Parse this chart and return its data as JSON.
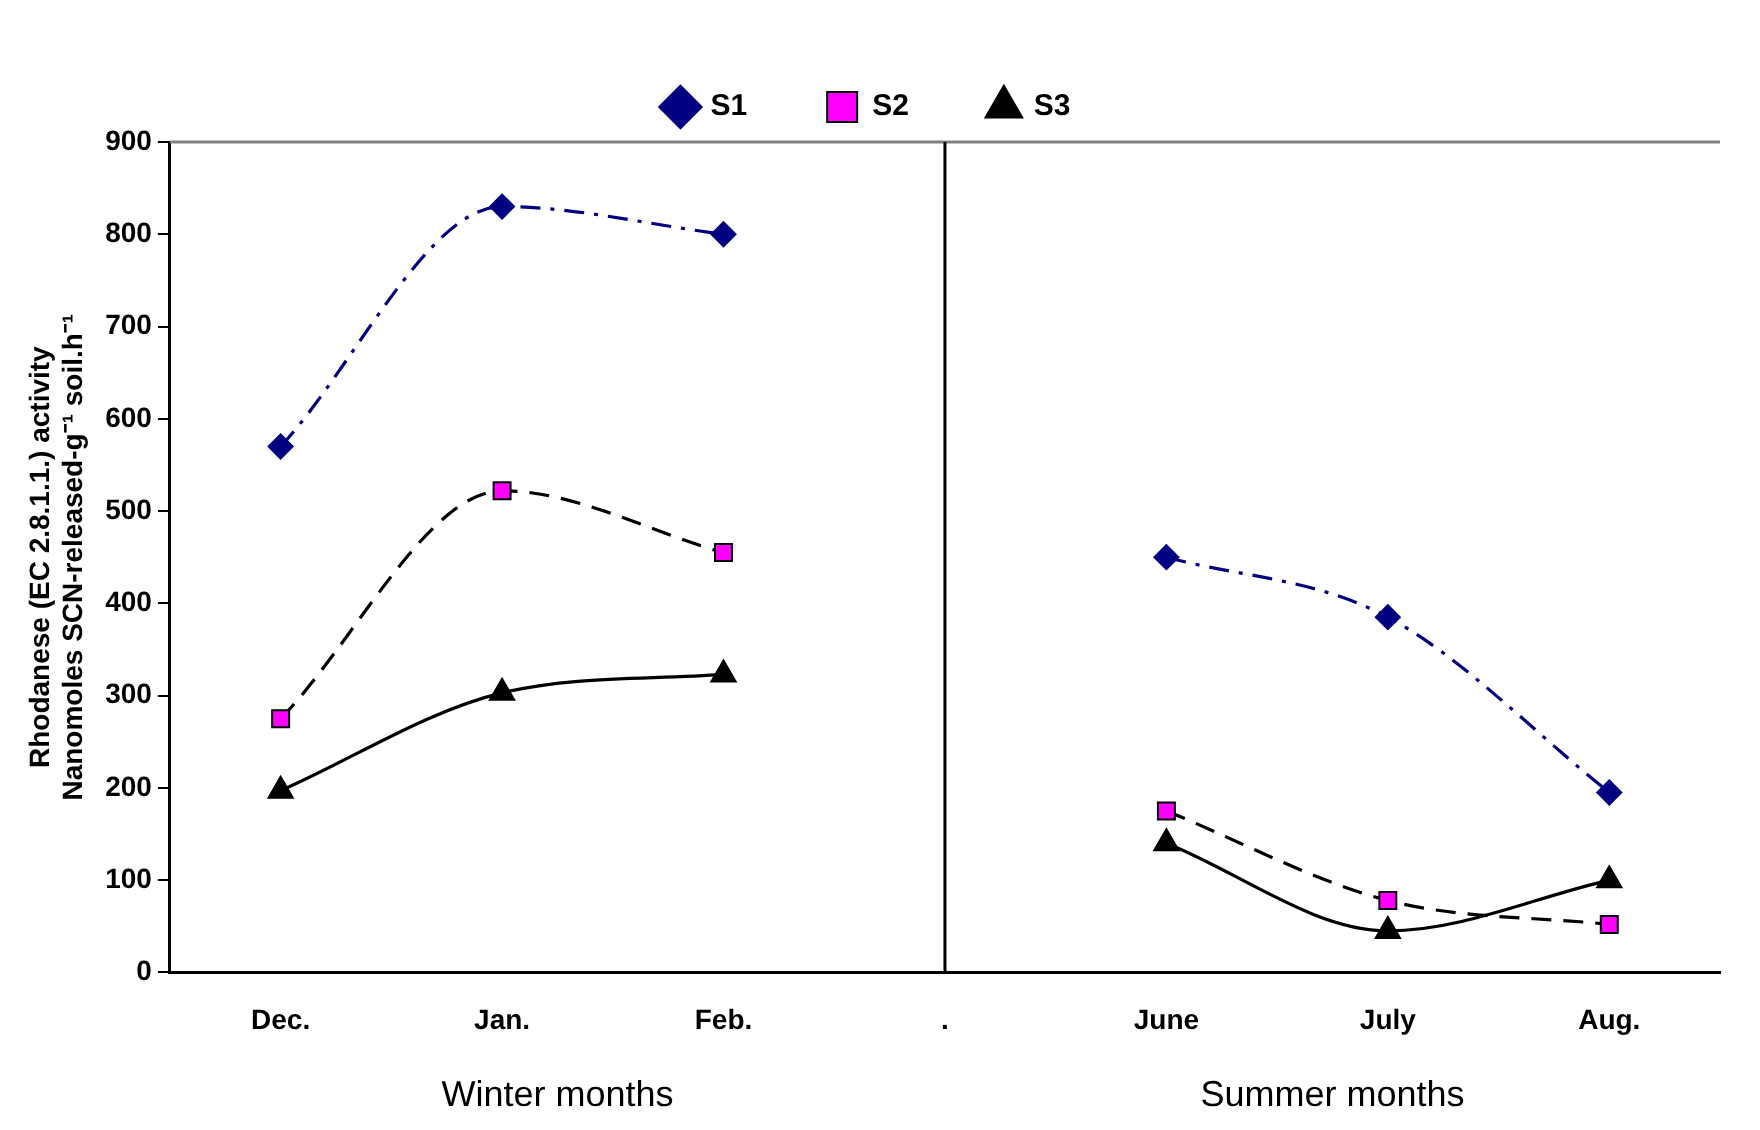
{
  "chart_data": {
    "type": "line",
    "ylabel": "Rhodanese (EC 2.8.1.1.) activity\nNanomoles SCN-released-g⁻¹ soil.h⁻¹",
    "categories": [
      "Dec.",
      "Jan.",
      "Feb.",
      ".",
      "June",
      "July",
      "Aug."
    ],
    "series": [
      {
        "name": "S1",
        "color": "#000080",
        "marker": "diamond",
        "line_style": "dashdot",
        "values": [
          570,
          830,
          800,
          null,
          450,
          385,
          195
        ]
      },
      {
        "name": "S2",
        "color": "#000000",
        "colors": [
          "#ff00ff",
          "#ff00ff",
          "#ff00ff",
          "#ff00ff",
          "#ff00ff",
          "#ff00ff",
          "#ff00ff"
        ],
        "marker": "square",
        "line_style": "dashed",
        "values": [
          275,
          522,
          455,
          null,
          175,
          78,
          52
        ]
      },
      {
        "name": "S3",
        "color": "#000000",
        "colors": [
          "#000000",
          "#000000",
          "#000000",
          "#000000",
          "#000000",
          "#000000",
          "#000000"
        ],
        "marker": "triangle",
        "line_style": "solid",
        "values": [
          197,
          303,
          323,
          null,
          140,
          45,
          100
        ]
      }
    ],
    "ylim": [
      0,
      900
    ],
    "yticks": [
      0,
      100,
      200,
      300,
      400,
      500,
      600,
      700,
      800,
      900
    ],
    "grid": false,
    "legend": "top",
    "ref_lines": [
      {
        "axis": "y",
        "value": 900,
        "color": "#808080"
      },
      {
        "axis": "x",
        "value": ".",
        "color": "#000000"
      }
    ],
    "annotations": [
      "Winter months",
      "Summer months"
    ]
  }
}
